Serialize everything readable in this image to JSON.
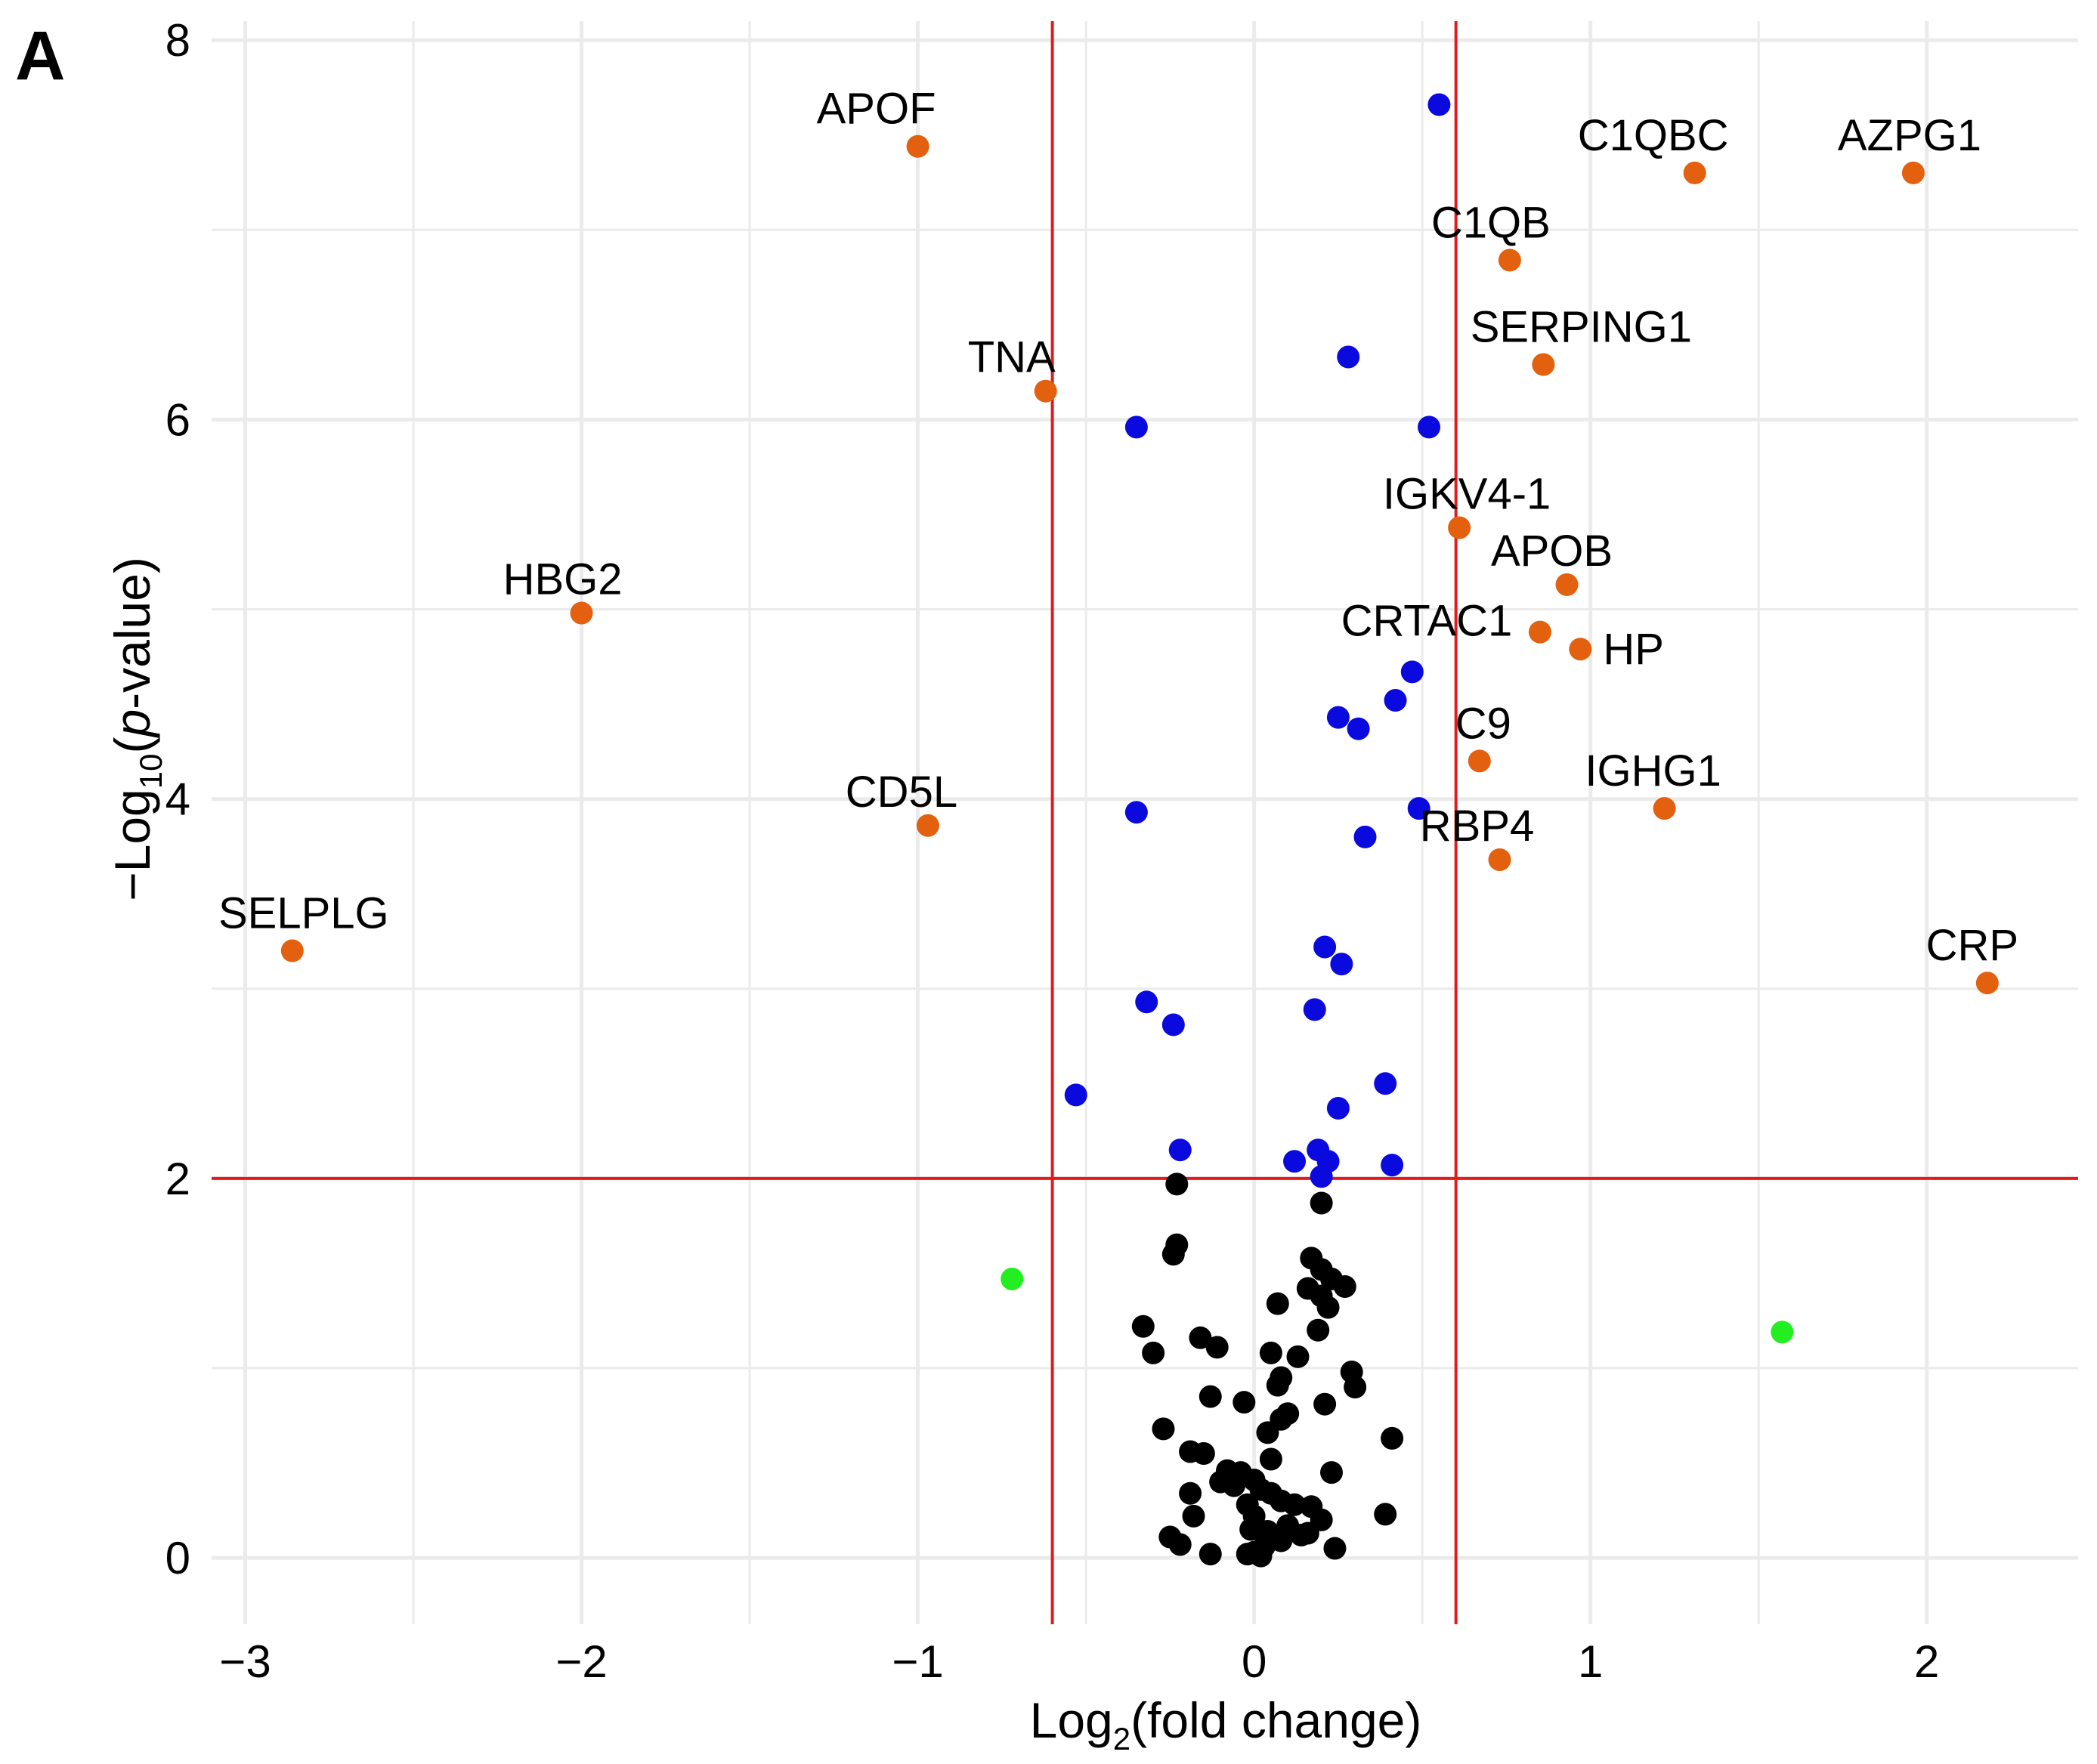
{
  "panel_label": "A",
  "chart_data": {
    "type": "scatter",
    "subtype": "volcano",
    "title": "",
    "xlabel": {
      "prefix": "Log",
      "sub": "2",
      "suffix": "(fold change)"
    },
    "ylabel": {
      "prefix": "−Log",
      "sub": "10",
      "mid": "(",
      "italic": "p",
      "suffix": "-value)"
    },
    "xlim": [
      -3.1,
      2.45
    ],
    "ylim": [
      -0.35,
      8.1
    ],
    "x_ticks": [
      -3,
      -2,
      -1,
      0,
      1,
      2
    ],
    "x_tick_labels": [
      "−3",
      "−2",
      "−1",
      "0",
      "1",
      "2"
    ],
    "y_ticks": [
      0,
      2,
      4,
      6,
      8
    ],
    "y_tick_labels": [
      "0",
      "2",
      "4",
      "6",
      "8"
    ],
    "minor_x": [
      -2.5,
      -1.5,
      -0.5,
      0.5,
      1.5
    ],
    "minor_y": [
      1,
      3,
      5,
      7
    ],
    "grid": true,
    "legend": "none",
    "thresholds": {
      "fold_change_low": -0.6,
      "fold_change_high": 0.6,
      "neg_log10_p": 2
    },
    "colors": {
      "labeled": "#e3600f",
      "significant": "#0a0adf",
      "fold_only": "#22ee22",
      "not_significant": "#000000",
      "threshold_line": "#e41a1c",
      "grid": "#ebebeb"
    },
    "series": [
      {
        "name": "labeled",
        "points": [
          {
            "x": -1.0,
            "y": 7.44,
            "label": "APOF"
          },
          {
            "x": 1.31,
            "y": 7.3,
            "label": "C1QBC"
          },
          {
            "x": 1.96,
            "y": 7.3,
            "label": "AZPG1"
          },
          {
            "x": 0.76,
            "y": 6.84,
            "label": "C1QB"
          },
          {
            "x": 0.86,
            "y": 6.29,
            "label": "SERPING1"
          },
          {
            "x": -0.62,
            "y": 6.15,
            "label": "TNA"
          },
          {
            "x": 0.61,
            "y": 5.43,
            "label": "IGKV4-1"
          },
          {
            "x": 0.93,
            "y": 5.13,
            "label": "APOB"
          },
          {
            "x": -2.0,
            "y": 4.98,
            "label": "HBG2"
          },
          {
            "x": 0.85,
            "y": 4.88,
            "label": "CRTAC1"
          },
          {
            "x": 0.97,
            "y": 4.79,
            "label": "HP"
          },
          {
            "x": 0.67,
            "y": 4.2,
            "label": "C9"
          },
          {
            "x": 1.22,
            "y": 3.95,
            "label": "IGHG1"
          },
          {
            "x": -0.97,
            "y": 3.86,
            "label": "CD5L"
          },
          {
            "x": 0.73,
            "y": 3.68,
            "label": "RBP4"
          },
          {
            "x": -2.86,
            "y": 3.2,
            "label": "SELPLG"
          },
          {
            "x": 2.18,
            "y": 3.03,
            "label": "CRP"
          }
        ]
      },
      {
        "name": "significant",
        "points": [
          [
            0.55,
            7.66
          ],
          [
            0.28,
            6.33
          ],
          [
            -0.35,
            5.96
          ],
          [
            0.52,
            5.96
          ],
          [
            0.47,
            4.67
          ],
          [
            0.42,
            4.52
          ],
          [
            0.25,
            4.43
          ],
          [
            0.31,
            4.37
          ],
          [
            -0.35,
            3.93
          ],
          [
            0.49,
            3.95
          ],
          [
            0.33,
            3.8
          ],
          [
            0.21,
            3.22
          ],
          [
            0.26,
            3.13
          ],
          [
            -0.32,
            2.93
          ],
          [
            0.18,
            2.89
          ],
          [
            -0.24,
            2.81
          ],
          [
            0.39,
            2.5
          ],
          [
            -0.53,
            2.44
          ],
          [
            0.25,
            2.37
          ],
          [
            -0.22,
            2.15
          ],
          [
            0.19,
            2.15
          ],
          [
            0.12,
            2.09
          ],
          [
            0.22,
            2.09
          ],
          [
            0.41,
            2.07
          ],
          [
            0.2,
            2.01
          ]
        ]
      },
      {
        "name": "fold_only",
        "points": [
          [
            -0.72,
            1.47
          ],
          [
            1.57,
            1.19
          ]
        ]
      },
      {
        "name": "not_significant",
        "points": [
          [
            -0.23,
            1.97
          ],
          [
            0.2,
            1.87
          ],
          [
            -0.23,
            1.65
          ],
          [
            -0.24,
            1.6
          ],
          [
            0.17,
            1.58
          ],
          [
            0.2,
            1.52
          ],
          [
            0.23,
            1.47
          ],
          [
            0.16,
            1.42
          ],
          [
            0.27,
            1.43
          ],
          [
            0.2,
            1.38
          ],
          [
            0.07,
            1.34
          ],
          [
            0.22,
            1.32
          ],
          [
            -0.33,
            1.22
          ],
          [
            0.19,
            1.2
          ],
          [
            -0.16,
            1.16
          ],
          [
            -0.11,
            1.11
          ],
          [
            -0.3,
            1.08
          ],
          [
            0.05,
            1.08
          ],
          [
            0.13,
            1.06
          ],
          [
            0.29,
            0.98
          ],
          [
            0.08,
            0.95
          ],
          [
            0.07,
            0.91
          ],
          [
            0.3,
            0.9
          ],
          [
            -0.13,
            0.85
          ],
          [
            -0.03,
            0.82
          ],
          [
            0.21,
            0.81
          ],
          [
            0.1,
            0.76
          ],
          [
            0.08,
            0.73
          ],
          [
            -0.27,
            0.68
          ],
          [
            0.04,
            0.66
          ],
          [
            0.41,
            0.63
          ],
          [
            -0.19,
            0.56
          ],
          [
            -0.15,
            0.55
          ],
          [
            0.05,
            0.52
          ],
          [
            -0.08,
            0.46
          ],
          [
            -0.04,
            0.45
          ],
          [
            0.0,
            0.41
          ],
          [
            -0.06,
            0.38
          ],
          [
            0.02,
            0.36
          ],
          [
            0.05,
            0.34
          ],
          [
            -0.19,
            0.34
          ],
          [
            0.12,
            0.28
          ],
          [
            0.08,
            0.3
          ],
          [
            0.17,
            0.27
          ],
          [
            -0.02,
            0.28
          ],
          [
            0.0,
            0.22
          ],
          [
            -0.18,
            0.22
          ],
          [
            0.39,
            0.23
          ],
          [
            0.2,
            0.2
          ],
          [
            0.1,
            0.17
          ],
          [
            -0.01,
            0.15
          ],
          [
            0.04,
            0.14
          ],
          [
            0.16,
            0.13
          ],
          [
            -0.25,
            0.11
          ],
          [
            0.08,
            0.09
          ],
          [
            -0.22,
            0.07
          ],
          [
            0.03,
            0.06
          ],
          [
            0.24,
            0.05
          ],
          [
            0.0,
            0.03
          ],
          [
            -0.13,
            0.02
          ],
          [
            -0.02,
            0.02
          ],
          [
            0.02,
            0.01
          ],
          [
            -0.1,
            0.4
          ],
          [
            0.14,
            0.12
          ],
          [
            0.23,
            0.45
          ]
        ]
      }
    ]
  }
}
